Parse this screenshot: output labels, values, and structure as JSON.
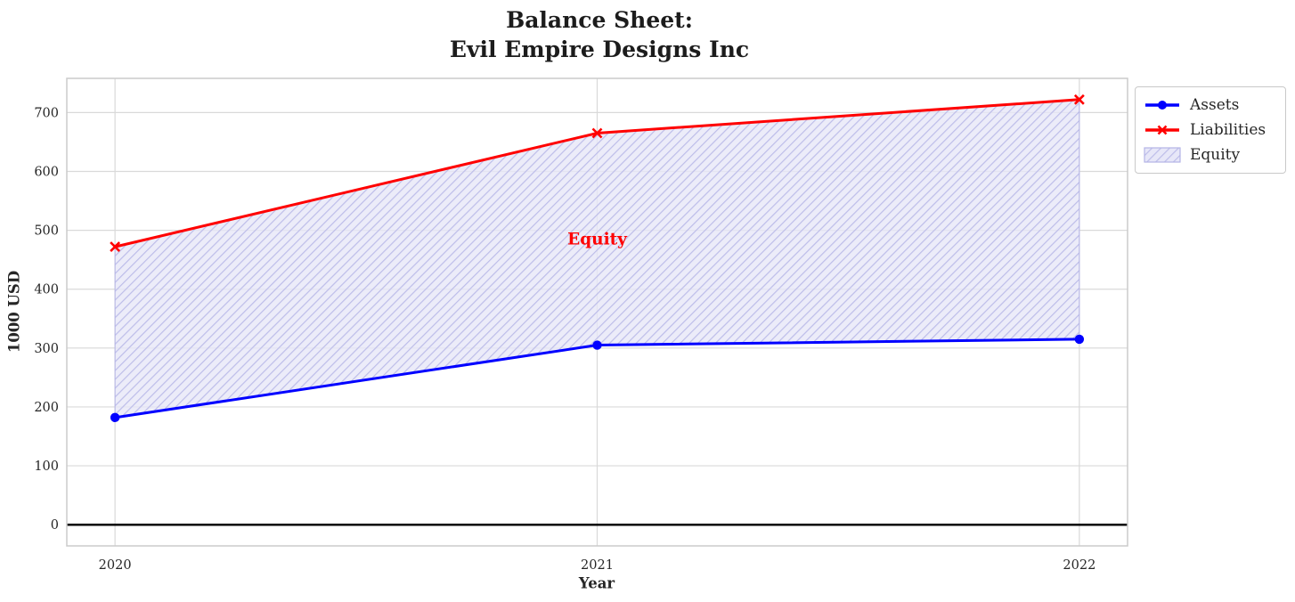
{
  "title": {
    "line1": "Balance Sheet:",
    "line2": "Evil Empire Designs Inc"
  },
  "chart_data": {
    "type": "line",
    "title": "Balance Sheet: Evil Empire Designs Inc",
    "xlabel": "Year",
    "ylabel": "1000 USD",
    "categories": [
      2020,
      2021,
      2022
    ],
    "series": [
      {
        "name": "Assets",
        "values": [
          182,
          305,
          315
        ],
        "color": "#0000ff",
        "marker": "circle",
        "linewidth": 3
      },
      {
        "name": "Liabilities",
        "values": [
          472,
          665,
          722
        ],
        "color": "#ff0000",
        "marker": "x",
        "linewidth": 3
      }
    ],
    "area": {
      "label": "Equity",
      "between": [
        "Assets",
        "Liabilities"
      ],
      "fill_color": "#e7e7f8",
      "hatch": "///",
      "hatch_color": "#bdbde9",
      "edge_color": "#b4b4e6"
    },
    "annotation": {
      "text": "Equity",
      "x": 2021,
      "y": 485,
      "color": "#ff0000"
    },
    "xticks": [
      "2020",
      "2021",
      "2022"
    ],
    "yticks": [
      0,
      100,
      200,
      300,
      400,
      500,
      600,
      700
    ],
    "xlim": [
      2019.9,
      2022.1
    ],
    "ylim": [
      -36,
      758
    ],
    "grid": true,
    "zero_line_color": "#000000",
    "legend_position": "outside-top-right",
    "legend_entries": [
      "Assets",
      "Liabilities",
      "Equity"
    ]
  },
  "colors": {
    "grid": "#d9d9d9",
    "spine": "#cbcbcb",
    "tick_text": "#262626",
    "title_text": "#1c1c1c",
    "background": "#ffffff"
  }
}
